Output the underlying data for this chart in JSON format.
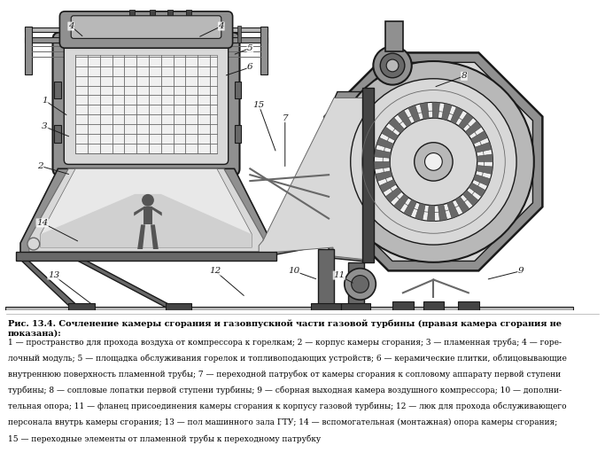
{
  "title_bold": "Рис. 13.4. Сочленение камеры сгорания и газовпускной части газовой турбины (правая камера сгорания не показана):",
  "caption_text": "1 — пространство для прохода воздуха от компрессора к горелкам; 2 — корпус камеры сгорания; 3 — пламенная труба; 4 — горе-\nлочный модуль; 5 — площадка обслуживания горелок и топливоподающих устройств; 6 — керамические плитки, облицовывающие\nвнутреннюю поверхность пламенной трубы; 7 — переходной патрубок от камеры сгорания к сопловому аппарату первой ступени\nтурбины; 8 — сопловые лопатки первой ступени турбины; 9 — сборная выходная камера воздушного компрессора; 10 — дополни-\nтельная опора; 11 — фланец присоединения камеры сгорания к корпусу газовой турбины; 12 — люк для прохода обслуживающего\nперсонала внутрь камеры сгорания; 13 — пол машинного зала ГТУ; 14 — вспомогательная (монтажная) опора камеры сгорания;\n15 — переходные элементы от пламенной трубы к переходному патрубку",
  "bg_color": "#ffffff"
}
